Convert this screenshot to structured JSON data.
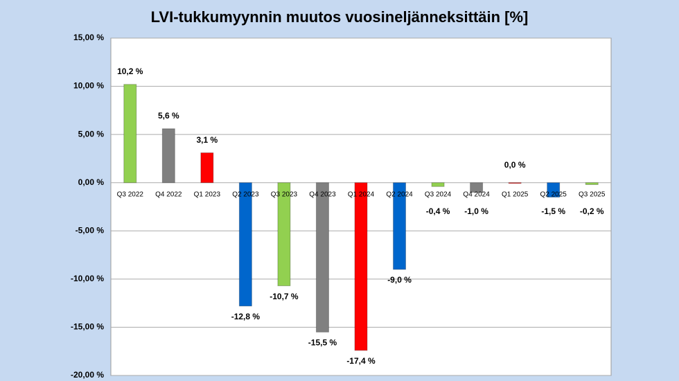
{
  "chart_data": {
    "type": "bar",
    "title": "LVI-tukkumyynnin muutos vuosineljänneksittäin [%]",
    "categories": [
      "Q3 2022",
      "Q4 2022",
      "Q1 2023",
      "Q2 2023",
      "Q3 2023",
      "Q4 2023",
      "Q1 2024",
      "Q2 2024",
      "Q3 2024",
      "Q4 2024",
      "Q1 2025",
      "Q2 2025",
      "Q3 2025"
    ],
    "values": [
      10.2,
      5.6,
      3.1,
      -12.8,
      -10.7,
      -15.5,
      -17.4,
      -9.0,
      -0.4,
      -1.0,
      0.0,
      -1.5,
      -0.2
    ],
    "value_labels": [
      "10,2 %",
      "5,6 %",
      "3,1 %",
      "-12,8 %",
      "-10,7 %",
      "-15,5 %",
      "-17,4 %",
      "-9,0 %",
      "-0,4 %",
      "-1,0 %",
      "0,0 %",
      "-1,5 %",
      "-0,2 %"
    ],
    "colors": [
      "#92d050",
      "#808080",
      "#ff0000",
      "#0066cc",
      "#92d050",
      "#808080",
      "#ff0000",
      "#0066cc",
      "#92d050",
      "#808080",
      "#ff0000",
      "#0066cc",
      "#92d050"
    ],
    "ylim": [
      -20,
      15
    ],
    "yticks": [
      {
        "value": -20,
        "label": "-20,00 %"
      },
      {
        "value": -15,
        "label": "-15,00 %"
      },
      {
        "value": -10,
        "label": "-10,00 %"
      },
      {
        "value": -5,
        "label": "-5,00 %"
      },
      {
        "value": 0,
        "label": "0,00 %"
      },
      {
        "value": 5,
        "label": "5,00 %"
      },
      {
        "value": 10,
        "label": "10,00 %"
      },
      {
        "value": 15,
        "label": "15,00 %"
      }
    ],
    "grid": true
  }
}
